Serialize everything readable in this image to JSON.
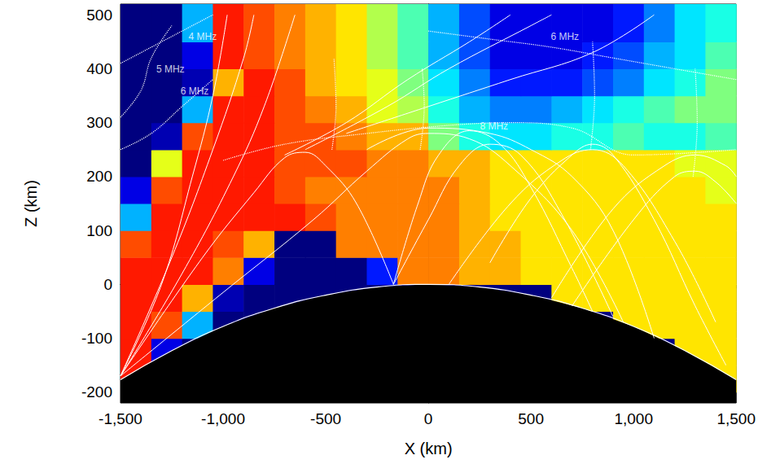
{
  "chart_data": {
    "type": "heatmap",
    "xlabel": "X (km)",
    "ylabel": "Z (km)",
    "xlim": [
      -1500,
      1500
    ],
    "ylim": [
      -220,
      520
    ],
    "xticks": [
      -1500,
      -1000,
      -500,
      0,
      500,
      1000,
      1500
    ],
    "yticks": [
      -200,
      -100,
      0,
      100,
      200,
      300,
      400,
      500
    ],
    "color_range": [
      0,
      10
    ],
    "cells": {
      "x_edges": [
        -1500,
        -1350,
        -1200,
        -1050,
        -900,
        -750,
        -600,
        -450,
        -300,
        -150,
        0,
        150,
        300,
        450,
        600,
        750,
        900,
        1050,
        1200,
        1350,
        1500
      ],
      "z_edges": [
        -200,
        -150,
        -100,
        -50,
        0,
        50,
        100,
        150,
        200,
        250,
        300,
        350,
        400,
        450,
        520
      ],
      "values": [
        [
          8.5,
          0,
          0,
          0,
          0,
          0,
          0,
          0,
          0,
          0,
          0,
          0,
          0,
          0,
          0,
          0,
          0,
          0,
          0,
          6.5
        ],
        [
          8.5,
          1,
          0,
          0,
          0,
          0,
          0,
          0,
          0,
          0,
          0,
          0,
          0,
          0,
          0,
          0,
          0,
          0,
          6.5,
          6.5
        ],
        [
          8.5,
          8,
          3,
          0,
          0,
          0,
          0,
          0,
          0,
          0,
          0,
          0,
          0,
          0,
          0,
          0,
          6.5,
          6.5,
          6.5,
          6.5
        ],
        [
          8.5,
          8.5,
          7,
          0.5,
          0,
          0,
          0,
          0,
          0,
          0,
          0,
          0,
          0,
          0,
          6.5,
          6.5,
          6.5,
          6.5,
          6.5,
          6.5
        ],
        [
          8.5,
          8.5,
          8.5,
          7.5,
          1,
          0,
          0,
          0,
          1.5,
          7.5,
          7.5,
          7,
          7,
          6.5,
          6.5,
          6.5,
          6.5,
          6.5,
          6.5,
          6.5
        ],
        [
          8,
          8.5,
          8.5,
          8,
          7,
          0,
          0,
          7.5,
          7.5,
          7.5,
          7.5,
          7,
          7,
          6.5,
          6.5,
          6.5,
          6.5,
          6.5,
          6.5,
          6.5
        ],
        [
          3,
          8.5,
          8.5,
          8.5,
          8.5,
          8.5,
          8,
          7.5,
          7.5,
          7.5,
          7.5,
          7,
          6.5,
          6.5,
          6.5,
          6.5,
          6.5,
          6.5,
          6.5,
          6.5
        ],
        [
          1,
          8,
          8.5,
          8.5,
          8.5,
          8,
          7.5,
          7.5,
          7.5,
          7.5,
          7.5,
          7,
          6.5,
          6.5,
          6.5,
          6.5,
          6.5,
          6.5,
          6.5,
          6
        ],
        [
          0,
          6,
          8.5,
          8.5,
          8.5,
          8,
          8,
          8,
          7.5,
          7.5,
          7,
          7,
          6.5,
          6.5,
          6.5,
          6.5,
          6.5,
          6.5,
          6,
          6
        ],
        [
          0,
          0.5,
          8,
          8.5,
          8.5,
          8,
          8,
          7.5,
          7,
          7,
          5,
          4,
          3.5,
          3.5,
          4,
          4,
          4.5,
          4,
          4,
          4.5
        ],
        [
          0,
          0,
          3,
          8.5,
          8.5,
          8,
          7.5,
          7,
          6,
          5.5,
          4,
          3,
          2.5,
          2.5,
          3,
          3.5,
          4,
          4.5,
          5,
          5
        ],
        [
          0,
          0,
          0.5,
          7,
          8.5,
          8,
          7,
          6.5,
          6,
          5,
          3.5,
          2.5,
          1.5,
          1.5,
          1.5,
          2,
          2.5,
          3.5,
          4,
          5
        ],
        [
          0,
          0,
          1,
          8.5,
          8,
          7.5,
          7,
          6.5,
          5.5,
          4.5,
          3,
          2,
          1,
          1,
          1,
          1.5,
          2,
          3,
          3.5,
          4.5
        ],
        [
          0,
          0,
          3,
          8.5,
          8,
          7.5,
          7,
          6.5,
          5.5,
          4.5,
          3,
          2,
          1,
          1,
          1,
          1,
          1.5,
          2.5,
          3.5,
          4
        ]
      ]
    },
    "rays": [
      [
        [
          -1500,
          -170
        ],
        [
          -1300,
          0
        ],
        [
          -1150,
          200
        ],
        [
          -1050,
          350
        ],
        [
          -980,
          500
        ]
      ],
      [
        [
          -1500,
          -170
        ],
        [
          -1250,
          50
        ],
        [
          -1050,
          250
        ],
        [
          -900,
          420
        ],
        [
          -850,
          500
        ]
      ],
      [
        [
          -1500,
          -170
        ],
        [
          -1200,
          20
        ],
        [
          -950,
          200
        ],
        [
          -800,
          330
        ],
        [
          -650,
          500
        ]
      ],
      [
        [
          -1500,
          -170
        ],
        [
          -1100,
          50
        ],
        [
          -850,
          170
        ],
        [
          -700,
          235
        ],
        [
          -600,
          245
        ],
        [
          -500,
          220
        ],
        [
          -350,
          150
        ],
        [
          -170,
          0
        ]
      ],
      [
        [
          -1500,
          -170
        ],
        [
          -1000,
          -15
        ],
        [
          -560,
          120
        ],
        [
          -300,
          210
        ],
        [
          -100,
          270
        ],
        [
          0,
          280
        ],
        [
          200,
          270
        ],
        [
          400,
          220
        ],
        [
          700,
          100
        ],
        [
          950,
          -70
        ]
      ],
      [
        [
          -170,
          0
        ],
        [
          0,
          120
        ],
        [
          150,
          220
        ],
        [
          300,
          260
        ],
        [
          450,
          240
        ],
        [
          650,
          130
        ],
        [
          900,
          -60
        ]
      ],
      [
        [
          -170,
          0
        ],
        [
          -50,
          150
        ],
        [
          50,
          240
        ],
        [
          200,
          285
        ],
        [
          350,
          260
        ],
        [
          500,
          180
        ],
        [
          700,
          30
        ],
        [
          800,
          -50
        ]
      ],
      [
        [
          -300,
          250
        ],
        [
          0,
          290
        ],
        [
          300,
          280
        ],
        [
          500,
          250
        ],
        [
          700,
          200
        ],
        [
          900,
          100
        ],
        [
          1100,
          -100
        ]
      ],
      [
        [
          300,
          40
        ],
        [
          500,
          160
        ],
        [
          700,
          240
        ],
        [
          800,
          260
        ],
        [
          900,
          240
        ],
        [
          1100,
          120
        ],
        [
          1300,
          -40
        ],
        [
          1450,
          -150
        ]
      ],
      [
        [
          100,
          0
        ],
        [
          400,
          150
        ],
        [
          650,
          230
        ],
        [
          800,
          250
        ],
        [
          950,
          220
        ],
        [
          1200,
          80
        ],
        [
          1400,
          -70
        ]
      ],
      [
        [
          700,
          -40
        ],
        [
          1000,
          120
        ],
        [
          1200,
          200
        ],
        [
          1300,
          210
        ],
        [
          1400,
          190
        ],
        [
          1500,
          150
        ]
      ],
      [
        [
          600,
          -25
        ],
        [
          900,
          140
        ],
        [
          1150,
          220
        ],
        [
          1300,
          240
        ],
        [
          1450,
          220
        ],
        [
          1500,
          200
        ]
      ],
      [
        [
          -700,
          240
        ],
        [
          -400,
          300
        ],
        [
          -100,
          380
        ],
        [
          200,
          450
        ],
        [
          400,
          500
        ]
      ],
      [
        [
          -600,
          250
        ],
        [
          -200,
          330
        ],
        [
          100,
          400
        ],
        [
          500,
          480
        ],
        [
          600,
          500
        ]
      ],
      [
        [
          -400,
          280
        ],
        [
          0,
          330
        ],
        [
          400,
          380
        ],
        [
          800,
          430
        ],
        [
          1100,
          500
        ]
      ]
    ],
    "contours": [
      {
        "label": "4 MHz",
        "at": [
          -1100,
          459
        ],
        "points": [
          [
            -1500,
            410
          ],
          [
            -1350,
            440
          ],
          [
            -1200,
            470
          ],
          [
            -1050,
            500
          ]
        ]
      },
      {
        "label": "5 MHz",
        "at": [
          -1257,
          399
        ],
        "points": [
          [
            -1500,
            310
          ],
          [
            -1400,
            360
          ],
          [
            -1350,
            420
          ],
          [
            -1250,
            480
          ]
        ]
      },
      {
        "label": "6 MHz",
        "at": [
          -1139,
          358
        ],
        "points": [
          [
            -1500,
            250
          ],
          [
            -1350,
            280
          ],
          [
            -1200,
            330
          ],
          [
            -1050,
            380
          ]
        ]
      },
      {
        "label": "6 MHz",
        "at": [
          665,
          459
        ],
        "points": [
          [
            0,
            470
          ],
          [
            300,
            455
          ],
          [
            600,
            440
          ],
          [
            900,
            420
          ],
          [
            1200,
            400
          ],
          [
            1500,
            380
          ]
        ]
      },
      {
        "label": "8 MHz",
        "at": [
          320,
          293
        ],
        "points": [
          [
            -1000,
            230
          ],
          [
            -700,
            260
          ],
          [
            -300,
            280
          ],
          [
            100,
            295
          ],
          [
            400,
            300
          ],
          [
            700,
            290
          ],
          [
            1000,
            240
          ],
          [
            1500,
            250
          ]
        ]
      },
      {
        "points": [
          [
            -470,
            250
          ],
          [
            -450,
            330
          ],
          [
            -460,
            420
          ]
        ]
      },
      {
        "points": [
          [
            -40,
            250
          ],
          [
            -20,
            330
          ],
          [
            -30,
            400
          ]
        ]
      },
      {
        "points": [
          [
            790,
            250
          ],
          [
            810,
            350
          ],
          [
            800,
            450
          ]
        ]
      },
      {
        "points": [
          [
            1290,
            200
          ],
          [
            1310,
            300
          ],
          [
            1300,
            400
          ]
        ]
      }
    ],
    "earth": {
      "x": [
        -1500,
        -1250,
        -1000,
        -750,
        -500,
        -250,
        0,
        250,
        500,
        750,
        1000,
        1250,
        1500
      ],
      "z": [
        -177,
        -123,
        -78,
        -44,
        -20,
        -5,
        0,
        -5,
        -20,
        -44,
        -78,
        -123,
        -177
      ]
    }
  }
}
